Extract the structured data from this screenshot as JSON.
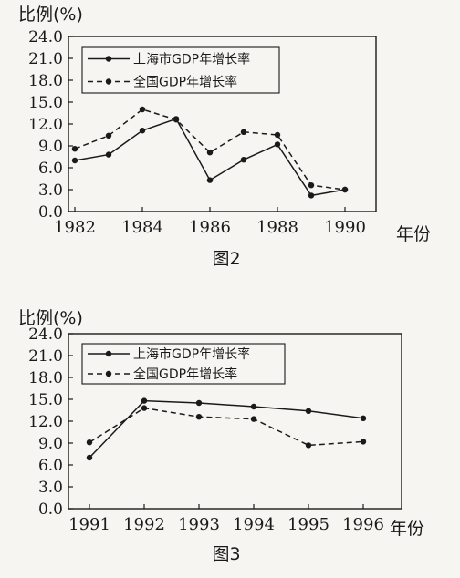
{
  "colors": {
    "background": "#f7f5f2",
    "ink": "#1a1a1a"
  },
  "chart_data": [
    {
      "type": "line",
      "caption": "图2",
      "ylabel": "比例(%)",
      "xlabel": "年份",
      "ylim": [
        0,
        24
      ],
      "yticks": [
        "0.0",
        "3.0",
        "6.0",
        "9.0",
        "12.0",
        "15.0",
        "18.0",
        "21.0",
        "24.0"
      ],
      "xticks": [
        "1982",
        "1984",
        "1986",
        "1988",
        "1990"
      ],
      "grid": false,
      "legend_position": "top-left",
      "x": [
        1982,
        1983,
        1984,
        1985,
        1986,
        1987,
        1988,
        1989,
        1990
      ],
      "series": [
        {
          "name": "上海市GDP年增长率",
          "style": "solid",
          "values": [
            7.0,
            7.8,
            11.1,
            12.7,
            4.3,
            7.1,
            9.2,
            2.2,
            3.0
          ]
        },
        {
          "name": "全国GDP年增长率",
          "style": "dashed",
          "values": [
            8.6,
            10.4,
            14.0,
            12.6,
            8.1,
            10.9,
            10.5,
            3.6,
            3.0
          ]
        }
      ]
    },
    {
      "type": "line",
      "caption": "图3",
      "ylabel": "比例(%)",
      "xlabel": "年份",
      "ylim": [
        0,
        24
      ],
      "yticks": [
        "0.0",
        "3.0",
        "6.0",
        "9.0",
        "12.0",
        "15.0",
        "18.0",
        "21.0",
        "24.0"
      ],
      "xticks": [
        "1991",
        "1992",
        "1993",
        "1994",
        "1995",
        "1996"
      ],
      "grid": false,
      "legend_position": "top-left",
      "x": [
        1991,
        1992,
        1993,
        1994,
        1995,
        1996
      ],
      "series": [
        {
          "name": "上海市GDP年增长率",
          "style": "solid",
          "values": [
            7.0,
            14.8,
            14.5,
            14.0,
            13.4,
            12.4
          ]
        },
        {
          "name": "全国GDP年增长率",
          "style": "dashed",
          "values": [
            9.1,
            13.8,
            12.6,
            12.3,
            8.7,
            9.2
          ]
        }
      ]
    }
  ]
}
